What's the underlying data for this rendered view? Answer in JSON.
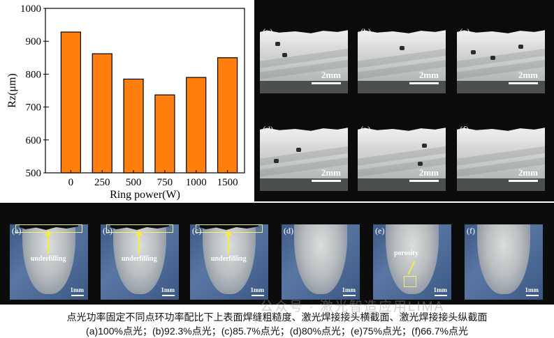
{
  "chart_data": {
    "type": "bar",
    "categories": [
      "0",
      "250",
      "500",
      "750",
      "1000",
      "1500"
    ],
    "values": [
      928,
      862,
      785,
      737,
      790,
      850
    ],
    "xlabel": "Ring power(W)",
    "ylabel": "Rz(μm)",
    "ylim": [
      500,
      1000
    ],
    "yticks": [
      "500",
      "600",
      "700",
      "800",
      "900",
      "1000"
    ],
    "bar_color": "#ff7f0e",
    "grid": false
  },
  "top_panels": {
    "labels": [
      "(a)",
      "(b)",
      "(c)",
      "(d)",
      "(e)",
      "(f)"
    ],
    "scale_label": "2mm"
  },
  "bottom_panels": {
    "labels": [
      "(a)",
      "(b)",
      "(c)",
      "(d)",
      "(e)",
      "(f)"
    ],
    "annotations": {
      "underfilling": "underfilling",
      "porosity": "porosity"
    },
    "scale_label": "1mm"
  },
  "watermark": "公众号 · 激光智造应用LIMA",
  "caption": {
    "line1": "点光功率固定不同点环功率配比下上表面焊缝粗糙度、激光焊接接头横截面、激光焊接接头纵截面",
    "line2": "(a)100%点光；(b)92.3%点光；(c)85.7%点光；(d)80%点光；(e)75%点光；(f)66.7%点光"
  }
}
